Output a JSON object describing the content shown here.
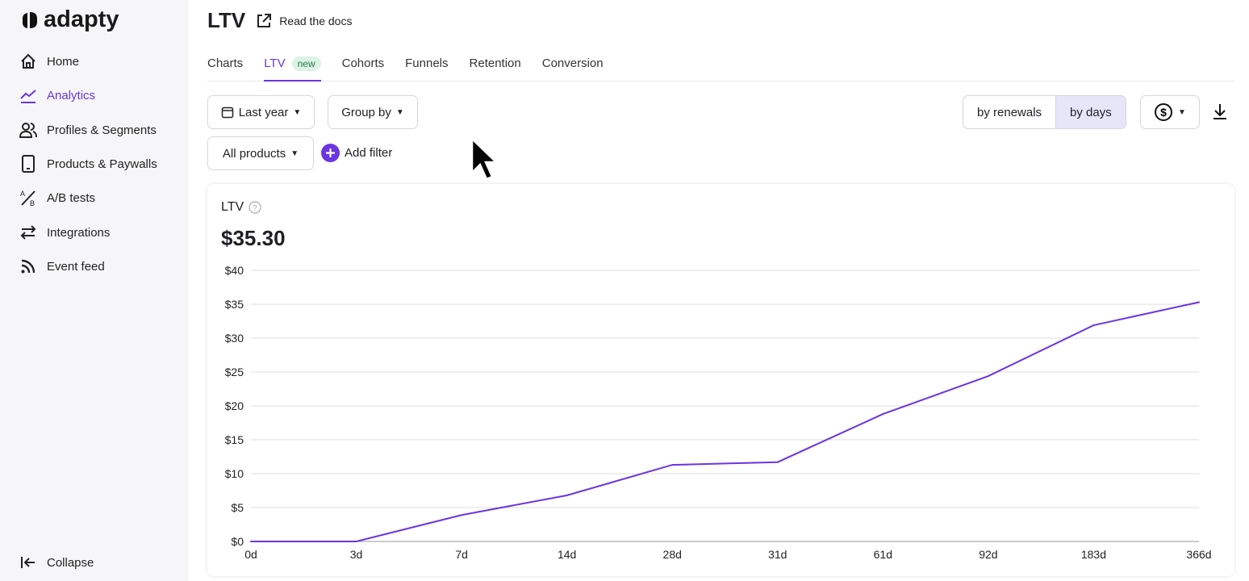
{
  "brand": {
    "name": "adapty"
  },
  "sidebar": {
    "items": [
      {
        "label": "Home",
        "icon": "home-icon"
      },
      {
        "label": "Analytics",
        "icon": "analytics-icon",
        "active": true
      },
      {
        "label": "Profiles & Segments",
        "icon": "users-icon"
      },
      {
        "label": "Products & Paywalls",
        "icon": "tablet-icon"
      },
      {
        "label": "A/B tests",
        "icon": "ab-test-icon"
      },
      {
        "label": "Integrations",
        "icon": "arrows-icon"
      },
      {
        "label": "Event feed",
        "icon": "feed-icon"
      }
    ],
    "collapse": "Collapse"
  },
  "header": {
    "title": "LTV",
    "docs": "Read the docs"
  },
  "tabs": [
    {
      "label": "Charts"
    },
    {
      "label": "LTV",
      "badge": "new",
      "active": true
    },
    {
      "label": "Cohorts"
    },
    {
      "label": "Funnels"
    },
    {
      "label": "Retention"
    },
    {
      "label": "Conversion"
    }
  ],
  "filters": {
    "date": "Last year",
    "group": "Group by",
    "products": "All products",
    "add_filter": "Add filter"
  },
  "toggle": {
    "options": [
      "by renewals",
      "by days"
    ],
    "selected": "by days"
  },
  "currency_icon": "dollar-circle-icon",
  "accent": "#6b35e0",
  "card": {
    "title": "LTV",
    "value": "$35.30"
  },
  "chart_data": {
    "type": "line",
    "categories": [
      "0d",
      "3d",
      "7d",
      "14d",
      "28d",
      "31d",
      "61d",
      "92d",
      "183d",
      "366d"
    ],
    "values": [
      0,
      0,
      3.9,
      6.8,
      11.3,
      11.7,
      18.8,
      24.4,
      31.9,
      35.3
    ],
    "yticks": [
      "$0",
      "$5",
      "$10",
      "$15",
      "$20",
      "$25",
      "$30",
      "$35",
      "$40"
    ],
    "ylim": [
      0,
      40
    ],
    "grid": true,
    "color": "#6b35e0"
  }
}
